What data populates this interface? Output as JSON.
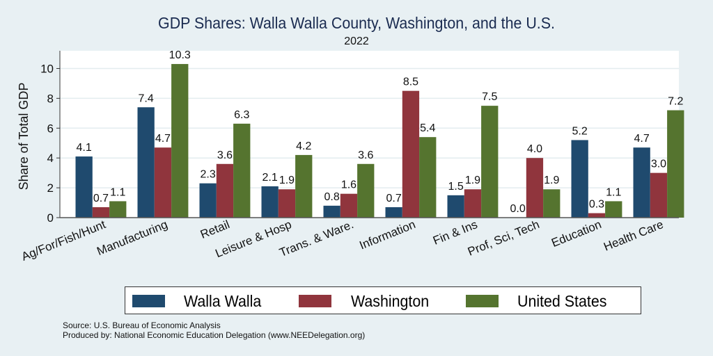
{
  "chart_data": {
    "type": "bar",
    "title": "GDP Shares: Walla Walla County, Washington, and the U.S.",
    "subtitle": "2022",
    "xlabel": "",
    "ylabel": "Share of Total GDP",
    "ylim": [
      0,
      11
    ],
    "yticks": [
      0,
      2,
      4,
      6,
      8,
      10
    ],
    "grid": true,
    "legend_position": "bottom",
    "categories": [
      "Ag/For/Fish/Hunt",
      "Manufacturing",
      "Retail",
      "Leisure & Hosp",
      "Trans. & Ware.",
      "Information",
      "Fin & Ins",
      "Prof, Sci, Tech",
      "Education",
      "Health Care"
    ],
    "series": [
      {
        "name": "Walla Walla",
        "color": "#1f4a6e",
        "values": [
          4.1,
          7.4,
          2.3,
          2.1,
          0.8,
          0.7,
          1.5,
          0.0,
          5.2,
          4.7
        ]
      },
      {
        "name": "Washington",
        "color": "#90353d",
        "values": [
          0.7,
          4.7,
          3.6,
          1.9,
          1.6,
          8.5,
          1.9,
          4.0,
          0.3,
          3.0
        ]
      },
      {
        "name": "United States",
        "color": "#55742f",
        "values": [
          1.1,
          10.3,
          6.3,
          4.2,
          3.6,
          5.4,
          7.5,
          1.9,
          1.1,
          7.2
        ]
      }
    ]
  },
  "footer": {
    "source": "Source: U.S. Bureau of Economic Analysis",
    "produced_by": "Produced by: National Economic Education Delegation (www.NEEDelegation.org)"
  }
}
